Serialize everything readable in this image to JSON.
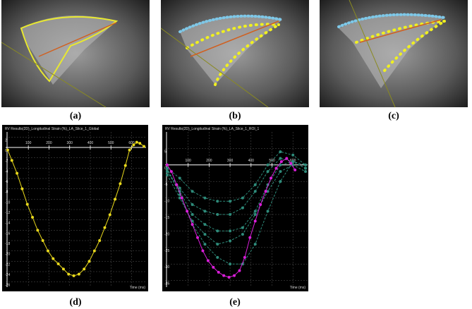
{
  "images": [
    {
      "label": "(a)"
    },
    {
      "label": "(b)"
    },
    {
      "label": "(c)"
    }
  ],
  "chart_data": [
    {
      "type": "line",
      "label": "(d)",
      "title": "RV Results(2D)_Longitudinal Strain (%)_LA_Slice_1_Global",
      "x_label": "Time (ms)",
      "xlim": [
        -10,
        670
      ],
      "ylim": [
        -27,
        3
      ],
      "xticks": [
        100,
        200,
        300,
        400,
        500,
        600
      ],
      "yticks": [
        2,
        0,
        -2,
        -4,
        -6,
        -8,
        -10,
        -12,
        -14,
        -16,
        -18,
        -20,
        -22,
        -24,
        -26
      ],
      "grid": true,
      "series": [
        {
          "color": "#e8d81c",
          "dashed": false,
          "x": [
            0,
            20,
            45,
            70,
            95,
            120,
            145,
            170,
            195,
            220,
            245,
            270,
            295,
            320,
            345,
            370,
            395,
            420,
            445,
            470,
            495,
            520,
            545,
            570,
            590,
            610,
            625,
            640,
            660
          ],
          "values": [
            -0.5,
            -2.5,
            -5,
            -8,
            -11,
            -13.5,
            -16,
            -18,
            -20,
            -21.5,
            -22.5,
            -23.5,
            -24.5,
            -24.8,
            -24.5,
            -23.5,
            -22,
            -20,
            -18,
            -15.5,
            -13,
            -10,
            -7,
            -3.5,
            -0.5,
            0.5,
            1,
            0.8,
            0.2
          ]
        }
      ]
    },
    {
      "type": "line",
      "label": "(e)",
      "title": "RV Results(2D)_Longitudinal Strain (%)_LA_Slice_1_ROI_1",
      "x_label": "Time (ms)",
      "xlim": [
        -10,
        670
      ],
      "ylim": [
        -37,
        10
      ],
      "xticks": [
        100,
        200,
        300,
        400,
        500,
        600
      ],
      "yticks": [
        5,
        0,
        -5,
        -10,
        -15,
        -20,
        -25,
        -30,
        -35
      ],
      "grid": true,
      "series": [
        {
          "color": "#2e8b7a",
          "dashed": true,
          "x": [
            0,
            60,
            120,
            180,
            240,
            300,
            360,
            420,
            480,
            540,
            600,
            660
          ],
          "values": [
            -1,
            -4,
            -8,
            -10,
            -11,
            -11,
            -10,
            -6,
            0,
            4,
            3,
            0
          ]
        },
        {
          "color": "#2e8b7a",
          "dashed": true,
          "x": [
            0,
            60,
            120,
            180,
            240,
            300,
            360,
            420,
            480,
            540,
            600,
            660
          ],
          "values": [
            -2,
            -7,
            -12,
            -14,
            -15,
            -15,
            -13,
            -8,
            -2,
            2,
            1,
            -1
          ]
        },
        {
          "color": "#2e8b7a",
          "dashed": true,
          "x": [
            0,
            60,
            120,
            180,
            240,
            300,
            360,
            420,
            480,
            540,
            600,
            660
          ],
          "values": [
            -2,
            -8,
            -15,
            -18,
            -20,
            -20,
            -19,
            -14,
            -6,
            0,
            1,
            -1
          ]
        },
        {
          "color": "#2e8b7a",
          "dashed": true,
          "x": [
            0,
            60,
            120,
            180,
            240,
            300,
            360,
            420,
            480,
            540,
            600,
            660
          ],
          "values": [
            -3,
            -10,
            -17,
            -21,
            -24,
            -23,
            -21,
            -15,
            -8,
            -2,
            0,
            -2
          ]
        },
        {
          "color": "#2e8b7a",
          "dashed": true,
          "x": [
            0,
            60,
            120,
            180,
            240,
            300,
            360,
            420,
            480,
            540,
            600,
            660
          ],
          "values": [
            -1,
            -9,
            -18,
            -24,
            -28,
            -30,
            -30,
            -24,
            -14,
            -5,
            1,
            0
          ]
        },
        {
          "color": "#d91ed9",
          "dashed": false,
          "x": [
            0,
            20,
            45,
            70,
            95,
            120,
            145,
            170,
            195,
            220,
            245,
            270,
            295,
            320,
            345,
            370,
            395,
            420,
            445,
            470,
            495,
            520,
            545,
            570,
            590,
            610
          ],
          "values": [
            0,
            -2,
            -6,
            -10,
            -14,
            -18,
            -22,
            -26,
            -29,
            -31,
            -32.5,
            -33.5,
            -34,
            -33.5,
            -32,
            -28,
            -22,
            -17,
            -12,
            -8,
            -4,
            -1,
            1,
            2,
            0.5,
            -1.5
          ]
        }
      ]
    }
  ]
}
